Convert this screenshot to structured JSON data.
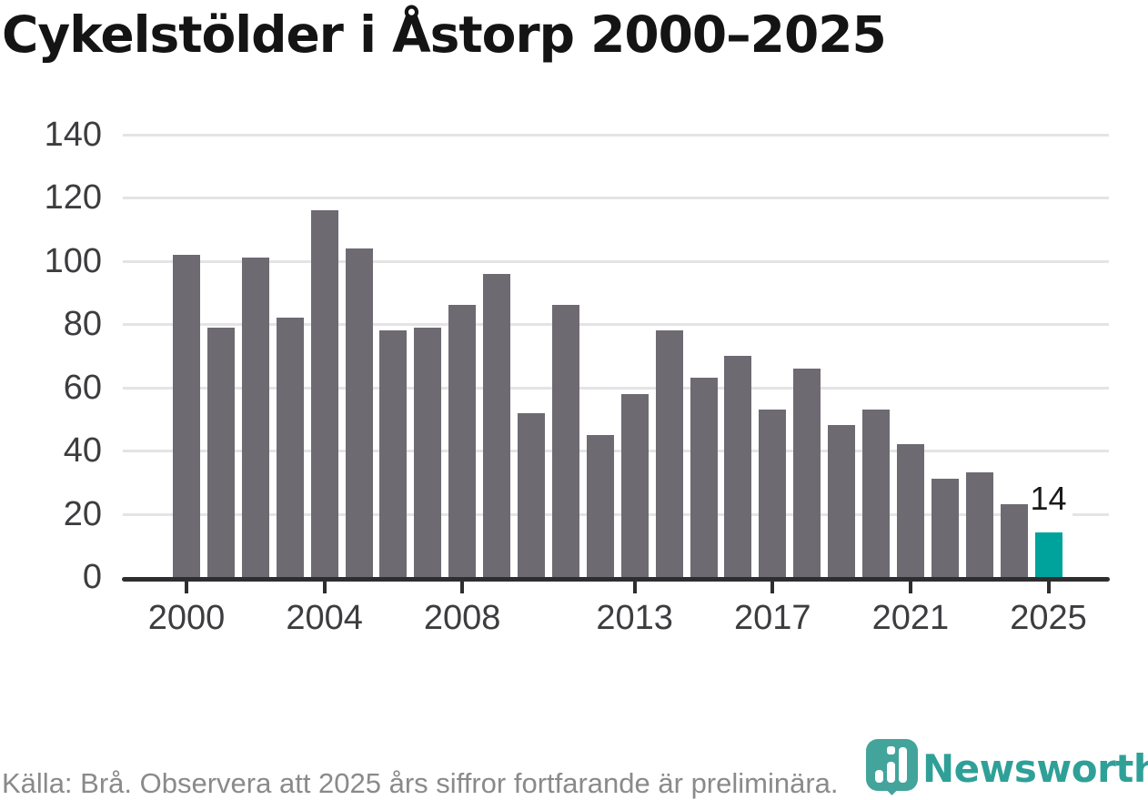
{
  "header": {
    "title": "Cykelstölder i Åstorp 2000–2025"
  },
  "chart_data": {
    "type": "bar",
    "title": "Cykelstölder i Åstorp 2000–2025",
    "categories": [
      2000,
      2001,
      2002,
      2003,
      2004,
      2005,
      2006,
      2007,
      2008,
      2009,
      2010,
      2011,
      2012,
      2013,
      2014,
      2015,
      2016,
      2017,
      2018,
      2019,
      2020,
      2021,
      2022,
      2023,
      2024,
      2025
    ],
    "values": [
      102,
      79,
      101,
      82,
      116,
      104,
      78,
      79,
      86,
      96,
      52,
      86,
      45,
      58,
      78,
      63,
      70,
      53,
      66,
      48,
      53,
      42,
      31,
      33,
      23,
      14
    ],
    "ylim": [
      0,
      140
    ],
    "y_ticks": [
      0,
      20,
      40,
      60,
      80,
      100,
      120,
      140
    ],
    "x_ticks": [
      2000,
      2004,
      2008,
      2013,
      2017,
      2021,
      2025
    ],
    "grid": true,
    "legend": false,
    "xlabel": "",
    "ylabel": "",
    "bar_color": "#6E6A72",
    "highlight_color": "#00A39B",
    "highlight_category": 2025,
    "annotation": {
      "category": 2025,
      "text": "14"
    }
  },
  "footer": {
    "source_note": "Källa: Brå. Observera att 2025 års siffror fortfarande är preliminära.",
    "brand": {
      "name": "Newsworthy",
      "color": "#2FA098",
      "pin_color": "#43A49C"
    }
  }
}
